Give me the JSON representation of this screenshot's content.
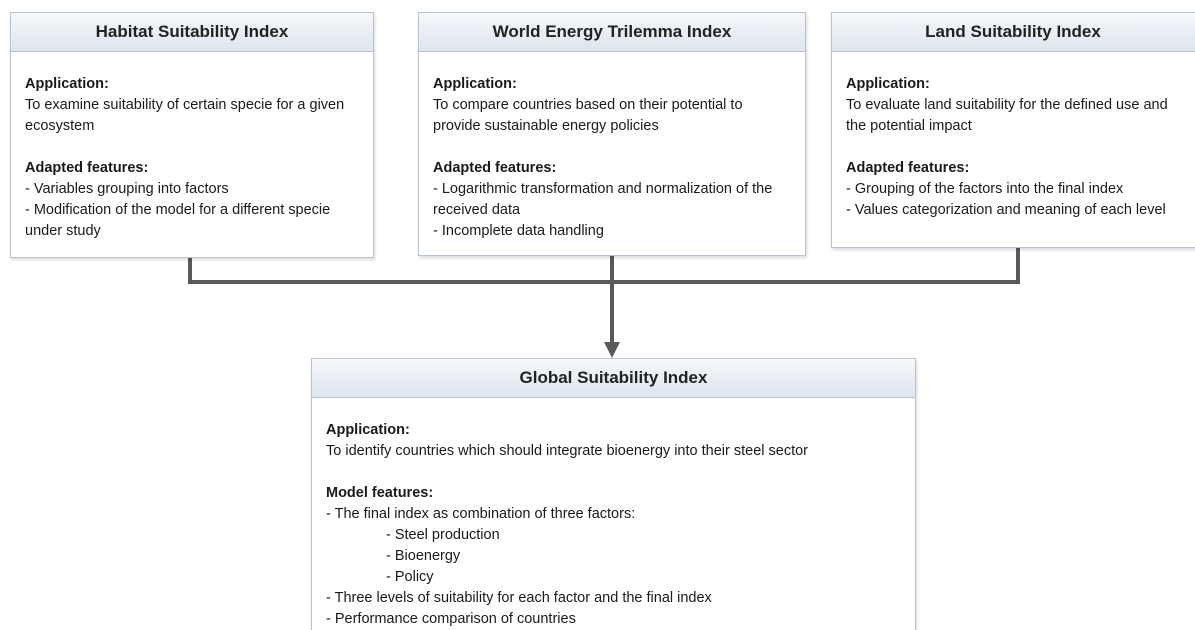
{
  "nodes": [
    {
      "title": "Habitat Suitability Index",
      "application_heading": "Application:",
      "application": "To examine suitability of certain specie for a given ecosystem",
      "features_heading": "Adapted features:",
      "features": [
        "- Variables grouping into factors",
        "- Modification of the model for a different specie under study"
      ]
    },
    {
      "title": "World Energy Trilemma Index",
      "application_heading": "Application:",
      "application": "To compare countries based on their potential to provide sustainable energy policies",
      "features_heading": "Adapted features:",
      "features": [
        "- Logarithmic transformation and normalization of the received data",
        "- Incomplete data handling"
      ]
    },
    {
      "title": "Land Suitability Index",
      "application_heading": "Application:",
      "application": "To evaluate land suitability for the defined use and the potential impact",
      "features_heading": "Adapted features:",
      "features": [
        "- Grouping of the factors into the final index",
        "- Values categorization and meaning of each level"
      ]
    },
    {
      "title": "Global Suitability Index",
      "application_heading": "Application:",
      "application": "To identify countries which should integrate bioenergy into their steel sector",
      "features_heading": "Model features:",
      "features": [
        "- The final index as combination of three factors:",
        "- Three levels of suitability for each factor and the final index",
        "- Performance comparison of countries"
      ],
      "factors": [
        "- Steel production",
        "- Bioenergy",
        "- Policy"
      ]
    }
  ]
}
